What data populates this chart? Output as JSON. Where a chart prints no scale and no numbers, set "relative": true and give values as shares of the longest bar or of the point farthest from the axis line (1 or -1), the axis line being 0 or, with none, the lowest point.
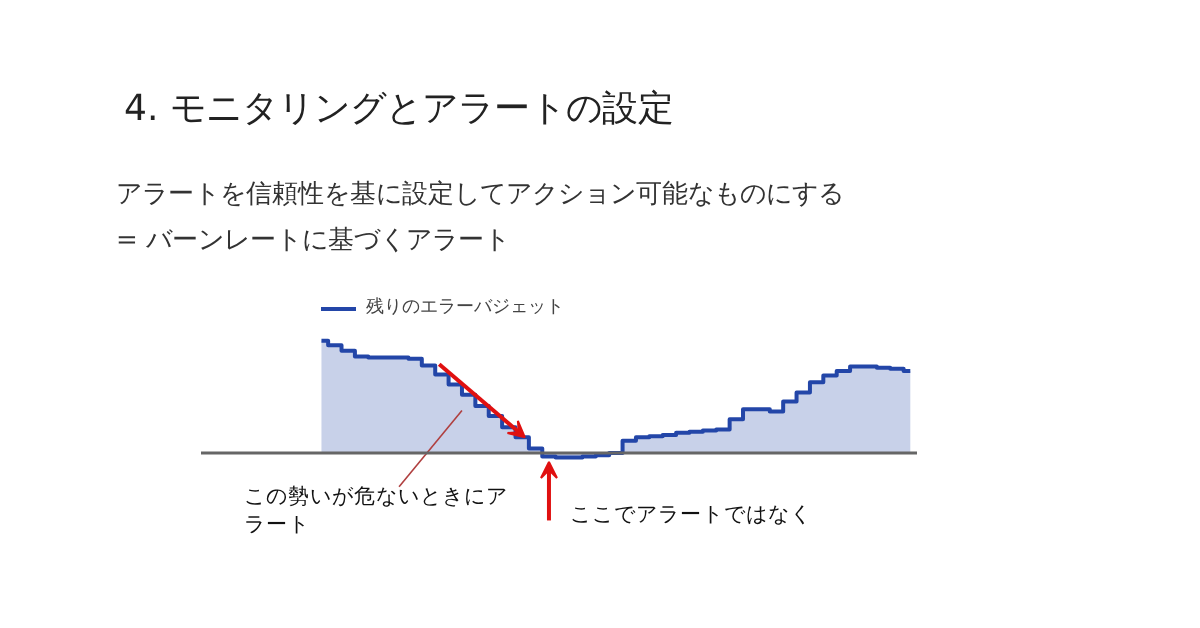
{
  "chart_data": {
    "type": "step",
    "title": "4. モニタリングとアラートの設定",
    "subtitle": "アラートを信頼性を基に設定してアクション可能なものにする\n= バーンレートに基づくアラート",
    "annotations": [
      "この勢いが危ないときにアラート",
      "ここでアラートではなく"
    ],
    "relative": true,
    "legend": "top left",
    "categories": [
      null,
      null,
      null,
      null,
      null,
      null,
      null,
      null,
      null,
      null,
      null,
      null,
      null,
      null,
      null,
      null,
      null,
      null,
      null,
      null,
      null,
      null,
      null,
      null,
      null,
      null,
      null,
      null,
      null,
      null,
      null,
      null,
      null,
      null,
      null,
      null,
      null,
      null,
      null,
      null,
      null,
      null,
      null,
      null,
      null
    ],
    "series": [
      {
        "name": "残りのエラーバジェット",
        "color": "#2346a8",
        "values": [
          1.0,
          0.96,
          0.91,
          0.86,
          0.85,
          0.85,
          0.85,
          0.84,
          0.78,
          0.7,
          0.61,
          0.52,
          0.42,
          0.33,
          0.23,
          0.14,
          0.04,
          -0.03,
          -0.04,
          -0.04,
          -0.03,
          -0.02,
          0.0,
          0.11,
          0.14,
          0.15,
          0.16,
          0.18,
          0.19,
          0.2,
          0.21,
          0.3,
          0.39,
          0.39,
          0.37,
          0.46,
          0.54,
          0.63,
          0.69,
          0.73,
          0.77,
          0.77,
          0.76,
          0.75,
          0.73
        ]
      }
    ]
  }
}
